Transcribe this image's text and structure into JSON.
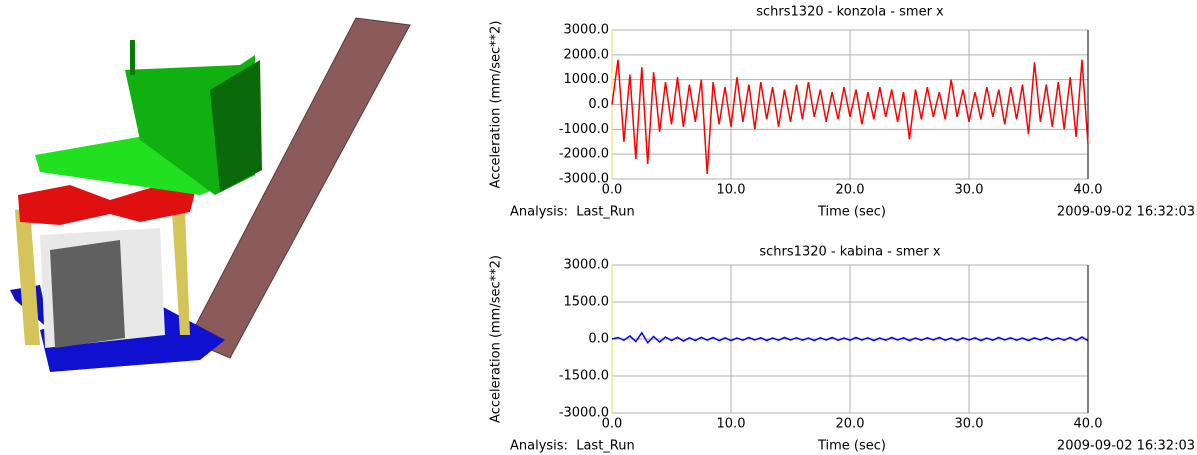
{
  "chart_data": [
    {
      "type": "line",
      "title": "schrs1320 - konzola - smer x",
      "ylabel": "Acceleration (mm/sec**2)",
      "xlabel": "Time (sec)",
      "analysis": "Analysis:  Last_Run",
      "timestamp": "2009-09-02 16:32:03",
      "xlim": [
        0,
        40
      ],
      "ylim": [
        -3000,
        3000
      ],
      "grid": true,
      "xticks": [
        {
          "value": 0,
          "label": "0.0"
        },
        {
          "value": 10,
          "label": "10.0"
        },
        {
          "value": 20,
          "label": "20.0"
        },
        {
          "value": 30,
          "label": "30.0"
        },
        {
          "value": 40,
          "label": "40.0"
        }
      ],
      "yticks": [
        {
          "value": -3000,
          "label": "-3000.0"
        },
        {
          "value": -2000,
          "label": "-2000.0"
        },
        {
          "value": -1000,
          "label": "-1000.0"
        },
        {
          "value": 0,
          "label": "0.0"
        },
        {
          "value": 1000,
          "label": "1000.0"
        },
        {
          "value": 2000,
          "label": "2000.0"
        },
        {
          "value": 3000,
          "label": "3000.0"
        }
      ],
      "x": [
        0,
        0.5,
        1,
        1.5,
        2,
        2.5,
        3,
        3.5,
        4,
        4.5,
        5,
        5.5,
        6,
        6.5,
        7,
        7.5,
        8,
        8.5,
        9,
        9.5,
        10,
        10.5,
        11,
        11.5,
        12,
        12.5,
        13,
        13.5,
        14,
        14.5,
        15,
        15.5,
        16,
        16.5,
        17,
        17.5,
        18,
        18.5,
        19,
        19.5,
        20,
        20.5,
        21,
        21.5,
        22,
        22.5,
        23,
        23.5,
        24,
        24.5,
        25,
        25.5,
        26,
        26.5,
        27,
        27.5,
        28,
        28.5,
        29,
        29.5,
        30,
        30.5,
        31,
        31.5,
        32,
        32.5,
        33,
        33.5,
        34,
        34.5,
        35,
        35.5,
        36,
        36.5,
        37,
        37.5,
        38,
        38.5,
        39,
        39.5,
        40
      ],
      "series": [
        {
          "color": "#ff0000",
          "values": [
            0,
            1800,
            -1500,
            1200,
            -2200,
            1500,
            -2400,
            1300,
            -1100,
            900,
            -800,
            1100,
            -900,
            800,
            -700,
            1000,
            -2800,
            900,
            -800,
            700,
            -900,
            1100,
            -700,
            800,
            -1000,
            900,
            -600,
            700,
            -900,
            600,
            -700,
            800,
            -600,
            900,
            -500,
            600,
            -700,
            500,
            -600,
            700,
            -500,
            600,
            -800,
            500,
            -600,
            700,
            -500,
            600,
            -700,
            500,
            -1400,
            600,
            -600,
            700,
            -500,
            500,
            -600,
            1000,
            -500,
            600,
            -700,
            500,
            -600,
            700,
            -500,
            600,
            -800,
            700,
            -600,
            800,
            -1200,
            1700,
            -700,
            800,
            -900,
            900,
            -1000,
            1100,
            -1300,
            1800,
            -1600
          ]
        }
      ]
    },
    {
      "type": "line",
      "title": "schrs1320 - kabina - smer x",
      "ylabel": "Acceleration (mm/sec**2)",
      "xlabel": "Time (sec)",
      "analysis": "Analysis:  Last_Run",
      "timestamp": "2009-09-02 16:32:03",
      "xlim": [
        0,
        40
      ],
      "ylim": [
        -3000,
        3000
      ],
      "grid": true,
      "xticks": [
        {
          "value": 0,
          "label": "0.0"
        },
        {
          "value": 10,
          "label": "10.0"
        },
        {
          "value": 20,
          "label": "20.0"
        },
        {
          "value": 30,
          "label": "30.0"
        },
        {
          "value": 40,
          "label": "40.0"
        }
      ],
      "yticks": [
        {
          "value": -3000,
          "label": "-3000.0"
        },
        {
          "value": -1500,
          "label": "-1500.0"
        },
        {
          "value": 0,
          "label": "0.0"
        },
        {
          "value": 1500,
          "label": "1500.0"
        },
        {
          "value": 3000,
          "label": "3000.0"
        }
      ],
      "x": [
        0,
        0.5,
        1,
        1.5,
        2,
        2.5,
        3,
        3.5,
        4,
        4.5,
        5,
        5.5,
        6,
        6.5,
        7,
        7.5,
        8,
        8.5,
        9,
        9.5,
        10,
        10.5,
        11,
        11.5,
        12,
        12.5,
        13,
        13.5,
        14,
        14.5,
        15,
        15.5,
        16,
        16.5,
        17,
        17.5,
        18,
        18.5,
        19,
        19.5,
        20,
        20.5,
        21,
        21.5,
        22,
        22.5,
        23,
        23.5,
        24,
        24.5,
        25,
        25.5,
        26,
        26.5,
        27,
        27.5,
        28,
        28.5,
        29,
        29.5,
        30,
        30.5,
        31,
        31.5,
        32,
        32.5,
        33,
        33.5,
        34,
        34.5,
        35,
        35.5,
        36,
        36.5,
        37,
        37.5,
        38,
        38.5,
        39,
        39.5,
        40
      ],
      "series": [
        {
          "color": "#0000ff",
          "values": [
            0,
            60,
            -50,
            120,
            -100,
            250,
            -150,
            100,
            -120,
            80,
            -60,
            70,
            -80,
            50,
            -60,
            70,
            -50,
            60,
            -70,
            50,
            -60,
            40,
            -50,
            60,
            -40,
            50,
            -60,
            40,
            -50,
            60,
            -40,
            50,
            -50,
            40,
            -60,
            50,
            -40,
            60,
            -50,
            40,
            -50,
            60,
            -40,
            50,
            -60,
            40,
            -50,
            60,
            -40,
            50,
            -60,
            40,
            -50,
            50,
            -40,
            60,
            -50,
            40,
            -60,
            50,
            -40,
            50,
            -60,
            40,
            -50,
            60,
            -40,
            50,
            -50,
            40,
            -60,
            50,
            -40,
            60,
            -50,
            40,
            -50,
            60,
            -60,
            80,
            -70
          ]
        }
      ]
    }
  ]
}
